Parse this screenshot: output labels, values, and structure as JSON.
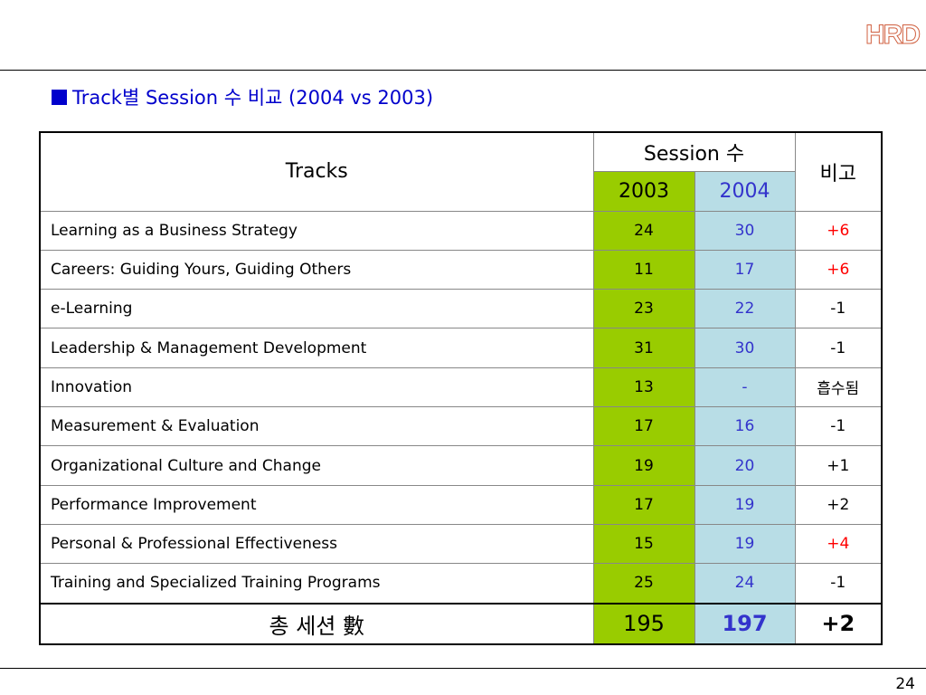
{
  "logo": "HRD",
  "title": "Track별 Session 수 비교 (2004 vs 2003)",
  "table": {
    "header": {
      "tracks": "Tracks",
      "session": "Session 수",
      "remark": "비고",
      "years": [
        "2003",
        "2004"
      ]
    },
    "rows": [
      [
        "Learning as a Business Strategy",
        "24",
        "30",
        "+6"
      ],
      [
        "Careers: Guiding Yours, Guiding Others",
        "11",
        "17",
        "+6"
      ],
      [
        "e-Learning",
        "23",
        "22",
        "-1"
      ],
      [
        "Leadership & Management Development",
        "31",
        "30",
        "-1"
      ],
      [
        "Innovation",
        "13",
        "-",
        "흡수됨"
      ],
      [
        "Measurement & Evaluation",
        "17",
        "16",
        "-1"
      ],
      [
        "Organizational Culture and Change",
        "19",
        "20",
        "+1"
      ],
      [
        "Performance Improvement",
        "17",
        "19",
        "+2"
      ],
      [
        "Personal & Professional Effectiveness",
        "15",
        "19",
        "+4"
      ],
      [
        "Training and Specialized Training Programs",
        "25",
        "24",
        "-1"
      ]
    ],
    "total": [
      "총 세션 數",
      "195",
      "197",
      "+2"
    ]
  },
  "page_number": "24"
}
